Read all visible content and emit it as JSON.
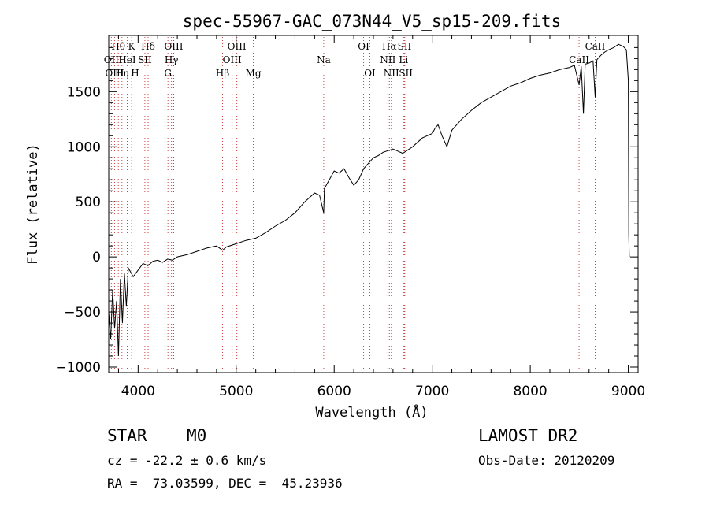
{
  "chart_data": {
    "type": "line",
    "title": "spec-55967-GAC_073N44_V5_sp15-209.fits",
    "xlabel": "Wavelength (Å)",
    "ylabel": "Flux (relative)",
    "xlim": [
      3700,
      9100
    ],
    "ylim": [
      -1050,
      2010
    ],
    "x_ticks": [
      4000,
      5000,
      6000,
      7000,
      8000,
      9000
    ],
    "y_ticks": [
      -1000,
      -500,
      0,
      500,
      1000,
      1500
    ],
    "grid": false,
    "series": [
      {
        "x": [
          3700,
          3720,
          3740,
          3760,
          3780,
          3800,
          3820,
          3840,
          3860,
          3880,
          3900,
          3950,
          4000,
          4050,
          4100,
          4150,
          4200,
          4250,
          4300,
          4350,
          4400,
          4500,
          4600,
          4700,
          4800,
          4861,
          4900,
          5000,
          5100,
          5200,
          5300,
          5400,
          5500,
          5600,
          5700,
          5800,
          5850,
          5893,
          5900,
          5950,
          6000,
          6050,
          6100,
          6150,
          6200,
          6250,
          6300,
          6350,
          6400,
          6450,
          6500,
          6600,
          6700,
          6800,
          6900,
          7000,
          7030,
          7060,
          7100,
          7150,
          7200,
          7300,
          7400,
          7500,
          7600,
          7700,
          7800,
          7900,
          8000,
          8100,
          8200,
          8300,
          8400,
          8450,
          8498,
          8520,
          8542,
          8560,
          8600,
          8640,
          8662,
          8680,
          8720,
          8760,
          8800,
          8850,
          8900,
          8950,
          8980,
          9000,
          9005,
          9010
        ],
        "y": [
          -500,
          -750,
          -300,
          -650,
          -400,
          -900,
          -200,
          -600,
          -150,
          -450,
          -100,
          -180,
          -120,
          -60,
          -80,
          -40,
          -30,
          -50,
          -20,
          -30,
          0,
          20,
          50,
          80,
          100,
          60,
          90,
          120,
          150,
          170,
          220,
          280,
          330,
          400,
          500,
          580,
          560,
          400,
          620,
          700,
          780,
          760,
          800,
          720,
          650,
          700,
          800,
          850,
          900,
          920,
          950,
          980,
          940,
          1000,
          1080,
          1120,
          1170,
          1200,
          1100,
          1000,
          1150,
          1250,
          1330,
          1400,
          1450,
          1500,
          1550,
          1580,
          1620,
          1650,
          1670,
          1700,
          1720,
          1740,
          1560,
          1730,
          1300,
          1750,
          1760,
          1780,
          1450,
          1790,
          1830,
          1860,
          1880,
          1900,
          1930,
          1910,
          1880,
          1600,
          200,
          0
        ]
      }
    ],
    "lines": [
      {
        "label": "Hθ",
        "x": 3798,
        "row": 0
      },
      {
        "label": "OII",
        "x": 3727,
        "row": 1
      },
      {
        "label": "OIII",
        "x": 3760,
        "row": 2
      },
      {
        "label": "Hη",
        "x": 3835,
        "row": 2
      },
      {
        "label": "K",
        "x": 3934,
        "row": 0
      },
      {
        "label": "HeI",
        "x": 3889,
        "row": 1
      },
      {
        "label": "H",
        "x": 3969,
        "row": 2
      },
      {
        "label": "SII",
        "x": 4069,
        "row": 1
      },
      {
        "label": "Hδ",
        "x": 4102,
        "row": 0
      },
      {
        "label": "OIII",
        "x": 4363,
        "row": 0
      },
      {
        "label": "Hγ",
        "x": 4340,
        "row": 1
      },
      {
        "label": "G",
        "x": 4304,
        "row": 2
      },
      {
        "label": "Hβ",
        "x": 4861,
        "row": 2
      },
      {
        "label": "OIII",
        "x": 5007,
        "row": 0
      },
      {
        "label": "OIII",
        "x": 4959,
        "row": 1
      },
      {
        "label": "Mg",
        "x": 5175,
        "row": 2
      },
      {
        "label": "Na",
        "x": 5893,
        "row": 1
      },
      {
        "label": "OI",
        "x": 6300,
        "row": 0
      },
      {
        "label": "OI",
        "x": 6364,
        "row": 2
      },
      {
        "label": "Hα",
        "x": 6563,
        "row": 0
      },
      {
        "label": "NII",
        "x": 6548,
        "row": 1
      },
      {
        "label": "NII",
        "x": 6583,
        "row": 2
      },
      {
        "label": "SII",
        "x": 6717,
        "row": 0
      },
      {
        "label": "Li",
        "x": 6708,
        "row": 1
      },
      {
        "label": "SII",
        "x": 6731,
        "row": 2
      },
      {
        "label": "CaII",
        "x": 8498,
        "row": 1
      },
      {
        "label": "CaII",
        "x": 8662,
        "row": 0
      }
    ]
  },
  "info": {
    "object_class": "STAR",
    "subclass": "M0",
    "cz": "cz = -22.2 ± 0.6 km/s",
    "coords": "RA =  73.03599, DEC =  45.23936",
    "survey": "LAMOST DR2",
    "obs_date": "Obs-Date: 20120209"
  }
}
